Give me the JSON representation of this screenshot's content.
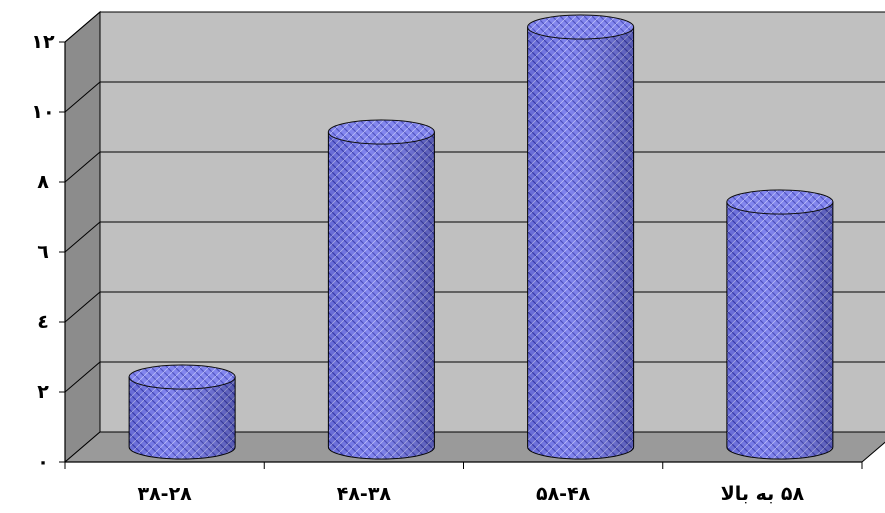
{
  "chart_data": {
    "type": "bar",
    "style": "3d-cylinder",
    "categories": [
      "۳۸-۲۸",
      "۴۸-۳۸",
      "۵۸-۴۸",
      "۵۸ به بالا"
    ],
    "values": [
      2,
      9,
      12,
      7
    ],
    "ylim": [
      0,
      12
    ],
    "yticks": [
      0,
      2,
      4,
      6,
      8,
      10,
      12
    ],
    "ytick_labels": [
      "٠",
      "٢",
      "٤",
      "٦",
      "٨",
      "١٠",
      "١٢"
    ],
    "title": "",
    "xlabel": "",
    "ylabel": "",
    "grid": true,
    "legend": "none",
    "colors": {
      "bar": "#6f73ea",
      "bar_dark": "#2f31a8",
      "bar_top": "#8a8ef0",
      "wall": "#c0c0c0",
      "floor": "#9a9a9a",
      "grid": "#000000"
    }
  }
}
